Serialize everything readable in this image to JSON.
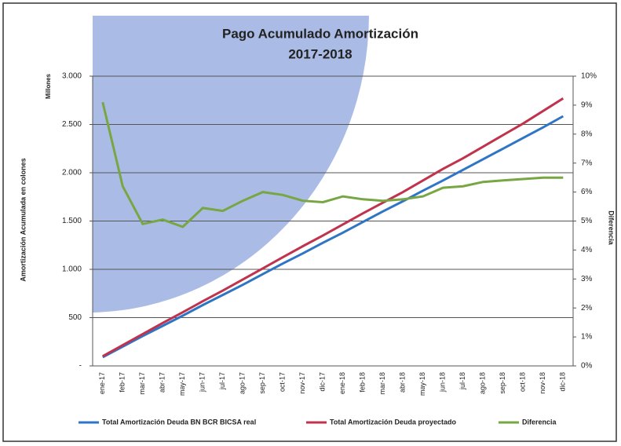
{
  "chart_data": {
    "type": "line",
    "title": "Pago Acumulado Amortización",
    "subtitle": "2017-2018",
    "y_unit_label": "Millones",
    "ylabel": "Amortización Acumulada en colones",
    "y2label": "Diferencia",
    "categories": [
      "ene-17",
      "feb-17",
      "mar-17",
      "abr-17",
      "may-17",
      "jun-17",
      "jul-17",
      "ago-17",
      "sep-17",
      "oct-17",
      "nov-17",
      "dic-17",
      "ene-18",
      "feb-18",
      "mar-18",
      "abr-18",
      "may-18",
      "jun-18",
      "jul-18",
      "ago-18",
      "sep-18",
      "oct-18",
      "nov-18",
      "dic-18"
    ],
    "series": [
      {
        "name": "Total Amortización Deuda BN BCR BICSA real",
        "color": "#2e75c6",
        "values": [
          90,
          200,
          310,
          415,
          520,
          630,
          735,
          840,
          950,
          1060,
          1165,
          1275,
          1380,
          1490,
          1600,
          1705,
          1815,
          1920,
          2030,
          2140,
          2250,
          2360,
          2470,
          2585
        ]
      },
      {
        "name": "Total Amortización Deuda proyectado",
        "color": "#c0334d",
        "values": [
          100,
          215,
          330,
          445,
          555,
          670,
          780,
          895,
          1010,
          1125,
          1240,
          1350,
          1465,
          1580,
          1690,
          1800,
          1920,
          2040,
          2150,
          2270,
          2390,
          2510,
          2640,
          2770
        ]
      },
      {
        "name": "Diferencia",
        "color": "#77a643",
        "axis": "y2",
        "values": [
          9.1,
          6.2,
          4.9,
          5.05,
          4.8,
          5.45,
          5.35,
          5.7,
          6.0,
          5.9,
          5.7,
          5.65,
          5.85,
          5.75,
          5.7,
          5.75,
          5.85,
          6.15,
          6.2,
          6.35,
          6.4,
          6.45,
          6.5,
          6.5
        ]
      }
    ],
    "ylim": [
      0,
      3000
    ],
    "yticks": [
      {
        "value": 0,
        "label": "-"
      },
      500,
      {
        "value": 1000,
        "label": "1.000"
      },
      {
        "value": 1500,
        "label": "1.500"
      },
      {
        "value": 2000,
        "label": "2.000"
      },
      {
        "value": 2500,
        "label": "2.500"
      },
      {
        "value": 3000,
        "label": "3.000"
      }
    ],
    "y2lim": [
      0,
      10
    ],
    "y2ticks": [
      {
        "value": 0,
        "label": "0%"
      },
      {
        "value": 1,
        "label": "1%"
      },
      {
        "value": 2,
        "label": "2%"
      },
      {
        "value": 3,
        "label": "3%"
      },
      {
        "value": 4,
        "label": "4%"
      },
      {
        "value": 5,
        "label": "5%"
      },
      {
        "value": 6,
        "label": "6%"
      },
      {
        "value": 7,
        "label": "7%"
      },
      {
        "value": 8,
        "label": "8%"
      },
      {
        "value": 9,
        "label": "9%"
      },
      {
        "value": 10,
        "label": "10%"
      }
    ],
    "grid": true,
    "legend": "bottom"
  }
}
